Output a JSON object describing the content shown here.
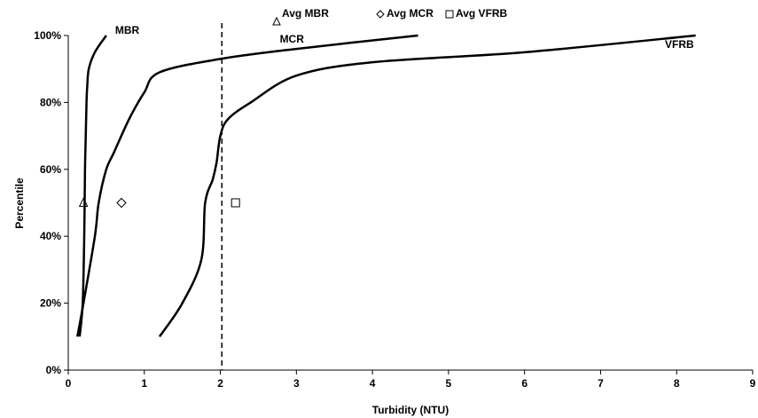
{
  "chart_data": {
    "type": "line",
    "title": "",
    "xlabel": "Turbidity (NTU)",
    "ylabel": "Percentile",
    "xlim": [
      0,
      9
    ],
    "ylim": [
      0,
      100
    ],
    "x_ticks": [
      "0",
      "1",
      "2",
      "3",
      "4",
      "5",
      "6",
      "7",
      "8",
      "9"
    ],
    "y_ticks": [
      "0%",
      "20%",
      "40%",
      "60%",
      "80%",
      "100%"
    ],
    "grid": false,
    "legend_position": "top-center",
    "legend": [
      {
        "label": "Avg MBR",
        "marker": "triangle"
      },
      {
        "label": "Avg MCR",
        "marker": "diamond"
      },
      {
        "label": "Avg VFRB",
        "marker": "square"
      }
    ],
    "series": [
      {
        "name": "MBR",
        "x": [
          0.15,
          0.19,
          0.21,
          0.22,
          0.23,
          0.24,
          0.25,
          0.27,
          0.35,
          0.5
        ],
        "y": [
          10,
          20,
          40,
          60,
          70,
          80,
          85,
          90,
          95,
          100
        ]
      },
      {
        "name": "MCR",
        "x": [
          0.12,
          0.2,
          0.35,
          0.4,
          0.5,
          0.6,
          0.8,
          1.0,
          1.2,
          2.0,
          3.0,
          4.6
        ],
        "y": [
          10,
          20,
          40,
          50,
          60,
          65,
          75,
          83,
          89,
          93,
          96,
          100
        ]
      },
      {
        "name": "VFRB",
        "x": [
          1.2,
          1.5,
          1.75,
          1.8,
          1.9,
          1.95,
          2.0,
          2.1,
          2.4,
          3.0,
          4.0,
          6.0,
          8.25
        ],
        "y": [
          10,
          20,
          33,
          50,
          57,
          62,
          70,
          75,
          80,
          88,
          92,
          95,
          100
        ]
      }
    ],
    "averages": [
      {
        "name": "Avg MBR",
        "marker": "triangle",
        "x": 0.2,
        "y": 50
      },
      {
        "name": "Avg MCR",
        "marker": "diamond",
        "x": 0.7,
        "y": 50
      },
      {
        "name": "Avg VFRB",
        "marker": "square",
        "x": 2.2,
        "y": 50
      }
    ],
    "reference_line": {
      "style": "dashed",
      "axis": "x",
      "x": 2.02
    }
  }
}
